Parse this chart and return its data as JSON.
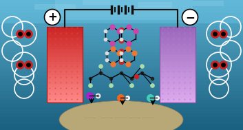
{
  "fig_width": 3.53,
  "fig_height": 1.89,
  "dpi": 100,
  "bg_top_color": "#5aafcf",
  "bg_bottom_color": "#1a6080",
  "water_light_color": "#a0d8ef",
  "anode_color_top": "#ff8888",
  "anode_color_bottom": "#cc2222",
  "cathode_color_top": "#ddaaee",
  "cathode_color_bottom": "#9966bb",
  "wire_color": "#111111",
  "bubble_color": "#ffffff",
  "plus_label": "+",
  "minus_label": "−",
  "sediment_color": "#b8a878",
  "arrow_color": "#111111"
}
